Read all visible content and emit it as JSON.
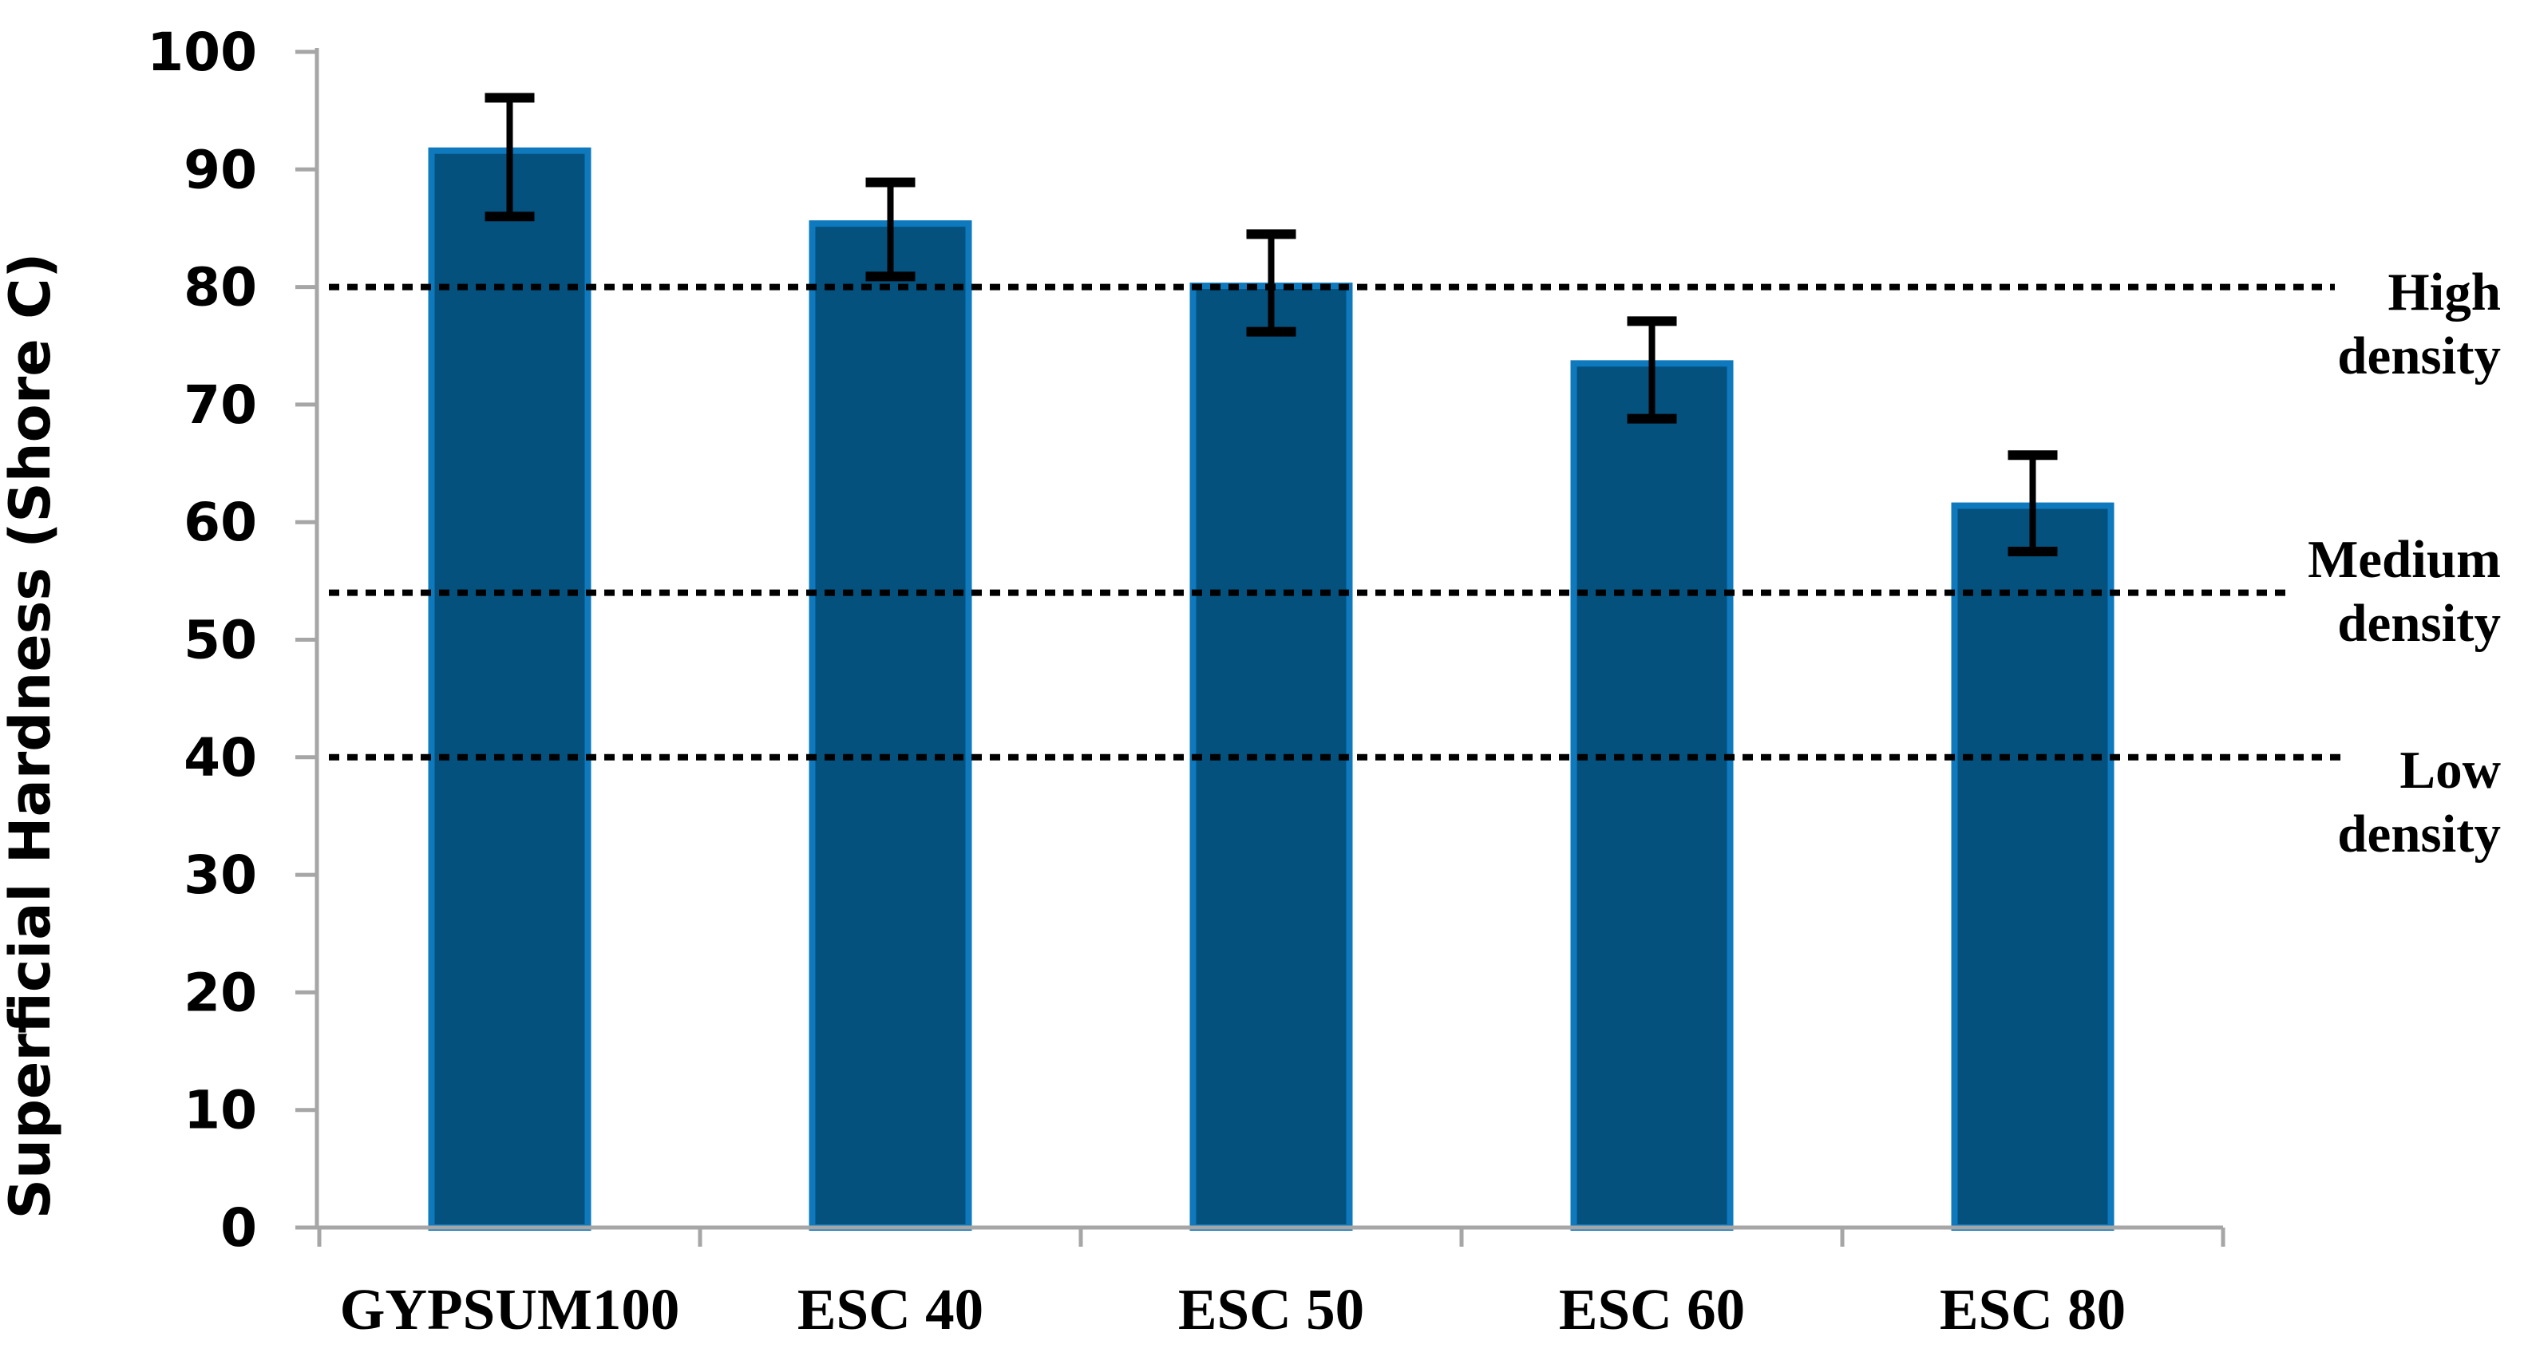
{
  "chart_data": {
    "type": "bar",
    "title": "",
    "xlabel": "",
    "ylabel": "Superficial Hardness (Shore C)",
    "categories": [
      "GYPSUM100",
      "ESC 40",
      "ESC 50",
      "ESC 60",
      "ESC 80"
    ],
    "values": [
      91.6,
      85.4,
      80.1,
      73.5,
      61.4
    ],
    "error_up": [
      4.5,
      3.5,
      4.4,
      3.6,
      4.3
    ],
    "error_down": [
      5.6,
      4.5,
      3.9,
      4.7,
      3.9
    ],
    "ylim": [
      0,
      100
    ],
    "ytick_step": 10,
    "ytick_labels": [
      "0",
      "10",
      "20",
      "30",
      "40",
      "50",
      "60",
      "70",
      "80",
      "90",
      "100"
    ],
    "grid": "off",
    "legend": "none",
    "bar_fill_color": "#04517e",
    "bar_border_color": "#0e79bd",
    "error_bar_color": "#000000",
    "axis_color": "#a6a6a6",
    "reference_lines": [
      {
        "value": 80,
        "label": "High density",
        "label_lines": [
          "High",
          "density"
        ],
        "style": "dotted",
        "color": "#000000"
      },
      {
        "value": 54,
        "label": "Medium density",
        "label_lines": [
          "Medium",
          "density"
        ],
        "style": "dotted",
        "color": "#000000"
      },
      {
        "value": 40,
        "label": "Low density",
        "label_lines": [
          "Low",
          "density"
        ],
        "style": "dotted",
        "color": "#000000"
      }
    ]
  }
}
